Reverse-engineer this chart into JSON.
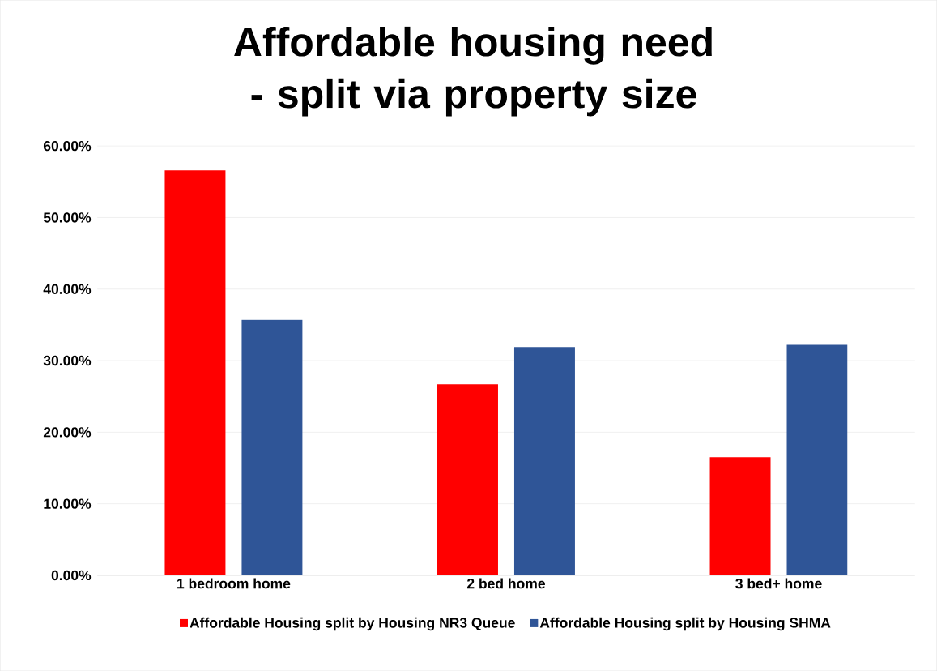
{
  "chart_data": {
    "type": "bar",
    "title": "Affordable housing need - split via property size",
    "categories": [
      "1 bedroom home",
      "2 bed home",
      "3 bed+ home"
    ],
    "series": [
      {
        "name": "Affordable Housing split by Housing NR3 Queue",
        "color": "#ff0000",
        "values": [
          56.6,
          26.7,
          16.5
        ]
      },
      {
        "name": "Affordable Housing split by Housing SHMA",
        "color": "#2f5597",
        "values": [
          35.7,
          31.9,
          32.2
        ]
      }
    ],
    "ylim": [
      0,
      60
    ],
    "yticks": [
      {
        "value": 0,
        "label": "0.00%"
      },
      {
        "value": 10,
        "label": "10.00%"
      },
      {
        "value": 20,
        "label": "20.00%"
      },
      {
        "value": 30,
        "label": "30.00%"
      },
      {
        "value": 40,
        "label": "40.00%"
      },
      {
        "value": 50,
        "label": "50.00%"
      },
      {
        "value": 60,
        "label": "60.00%"
      }
    ],
    "grid": "y",
    "legend": "bottom"
  }
}
